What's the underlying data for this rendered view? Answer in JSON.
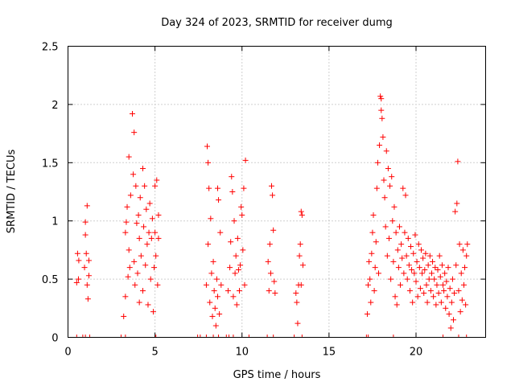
{
  "chart_data": {
    "type": "scatter",
    "title": "Day 324 of 2023, SRMTID for receiver dumg",
    "xlabel": "GPS time / hours",
    "ylabel": "SRMTID / TECUs",
    "xlim": [
      0,
      24
    ],
    "ylim": [
      0,
      2.5
    ],
    "xticks": [
      0,
      5,
      10,
      15,
      20
    ],
    "xtick_labels": [
      "0",
      "5",
      "10",
      "15",
      "20"
    ],
    "yticks": [
      0,
      0.5,
      1,
      1.5,
      2,
      2.5
    ],
    "ytick_labels": [
      "0",
      "0.5",
      "1",
      "1.5",
      "2",
      "2.5"
    ],
    "grid": true,
    "marker": "+",
    "color": "#ff0000",
    "series": [
      {
        "name": "SRMTID",
        "points": [
          [
            0.5,
            0.47
          ],
          [
            0.55,
            0.72
          ],
          [
            0.6,
            0.5
          ],
          [
            0.62,
            0.66
          ],
          [
            0.95,
            0.6
          ],
          [
            1.0,
            0.88
          ],
          [
            1.0,
            0.99
          ],
          [
            1.05,
            0.72
          ],
          [
            1.1,
            1.13
          ],
          [
            1.1,
            0.45
          ],
          [
            1.15,
            0.33
          ],
          [
            1.2,
            0.53
          ],
          [
            1.2,
            0.66
          ],
          [
            3.2,
            0.18
          ],
          [
            3.3,
            0.35
          ],
          [
            3.3,
            0.9
          ],
          [
            3.35,
            0.99
          ],
          [
            3.4,
            1.12
          ],
          [
            3.45,
            0.52
          ],
          [
            3.5,
            1.55
          ],
          [
            3.5,
            0.75
          ],
          [
            3.55,
            0.6
          ],
          [
            3.6,
            1.22
          ],
          [
            3.7,
            1.92
          ],
          [
            3.75,
            1.4
          ],
          [
            3.8,
            1.76
          ],
          [
            3.8,
            0.65
          ],
          [
            3.85,
            0.45
          ],
          [
            3.9,
            1.3
          ],
          [
            3.95,
            0.98
          ],
          [
            4.0,
            0.55
          ],
          [
            4.05,
            1.05
          ],
          [
            4.1,
            0.3
          ],
          [
            4.1,
            0.85
          ],
          [
            4.15,
            1.2
          ],
          [
            4.2,
            0.7
          ],
          [
            4.3,
            1.45
          ],
          [
            4.3,
            0.4
          ],
          [
            4.35,
            0.95
          ],
          [
            4.4,
            1.3
          ],
          [
            4.45,
            0.62
          ],
          [
            4.5,
            1.1
          ],
          [
            4.55,
            0.8
          ],
          [
            4.6,
            0.28
          ],
          [
            4.65,
            0.9
          ],
          [
            4.7,
            1.15
          ],
          [
            4.75,
            0.5
          ],
          [
            4.8,
            0.85
          ],
          [
            4.85,
            1.02
          ],
          [
            4.9,
            0.22
          ],
          [
            4.95,
            0.6
          ],
          [
            5.0,
            1.3
          ],
          [
            5.0,
            0.9
          ],
          [
            5.05,
            0.7
          ],
          [
            5.1,
            1.35
          ],
          [
            5.15,
            0.45
          ],
          [
            5.2,
            0.85
          ],
          [
            5.2,
            1.05
          ],
          [
            7.95,
            0.45
          ],
          [
            8.0,
            1.64
          ],
          [
            8.05,
            0.8
          ],
          [
            8.05,
            1.5
          ],
          [
            8.1,
            1.28
          ],
          [
            8.15,
            0.3
          ],
          [
            8.2,
            1.02
          ],
          [
            8.25,
            0.55
          ],
          [
            8.3,
            0.18
          ],
          [
            8.35,
            0.65
          ],
          [
            8.4,
            0.4
          ],
          [
            8.45,
            0.25
          ],
          [
            8.5,
            0.1
          ],
          [
            8.55,
            0.5
          ],
          [
            8.6,
            1.28
          ],
          [
            8.6,
            0.35
          ],
          [
            8.65,
            1.18
          ],
          [
            8.7,
            0.2
          ],
          [
            8.75,
            0.9
          ],
          [
            8.8,
            0.45
          ],
          [
            9.2,
            0.4
          ],
          [
            9.3,
            0.6
          ],
          [
            9.35,
            0.82
          ],
          [
            9.4,
            1.38
          ],
          [
            9.45,
            1.25
          ],
          [
            9.5,
            0.35
          ],
          [
            9.55,
            1.0
          ],
          [
            9.6,
            0.55
          ],
          [
            9.65,
            0.7
          ],
          [
            9.7,
            0.28
          ],
          [
            9.75,
            0.85
          ],
          [
            9.8,
            0.58
          ],
          [
            9.85,
            0.4
          ],
          [
            9.9,
            0.62
          ],
          [
            9.95,
            1.12
          ],
          [
            10.0,
            1.05
          ],
          [
            10.05,
            0.75
          ],
          [
            10.1,
            1.28
          ],
          [
            10.15,
            0.45
          ],
          [
            10.2,
            1.52
          ],
          [
            11.5,
            0.65
          ],
          [
            11.55,
            0.4
          ],
          [
            11.6,
            0.8
          ],
          [
            11.65,
            0.55
          ],
          [
            11.7,
            1.3
          ],
          [
            11.75,
            1.22
          ],
          [
            11.8,
            0.92
          ],
          [
            11.85,
            0.48
          ],
          [
            11.9,
            0.38
          ],
          [
            13.1,
            0.38
          ],
          [
            13.15,
            0.3
          ],
          [
            13.2,
            0.12
          ],
          [
            13.25,
            0.45
          ],
          [
            13.3,
            0.7
          ],
          [
            13.35,
            0.8
          ],
          [
            13.4,
            1.08
          ],
          [
            13.45,
            1.05
          ],
          [
            13.5,
            0.62
          ],
          [
            13.4,
            0.45
          ],
          [
            17.2,
            0.2
          ],
          [
            17.25,
            0.45
          ],
          [
            17.3,
            0.65
          ],
          [
            17.35,
            0.5
          ],
          [
            17.4,
            0.3
          ],
          [
            17.45,
            0.72
          ],
          [
            17.5,
            0.9
          ],
          [
            17.55,
            1.05
          ],
          [
            17.6,
            0.4
          ],
          [
            17.65,
            0.6
          ],
          [
            17.7,
            0.82
          ],
          [
            17.75,
            1.28
          ],
          [
            17.8,
            1.5
          ],
          [
            17.85,
            0.55
          ],
          [
            17.9,
            1.65
          ],
          [
            17.95,
            2.07
          ],
          [
            18.0,
            2.05
          ],
          [
            18.0,
            1.95
          ],
          [
            18.05,
            1.88
          ],
          [
            18.1,
            1.72
          ],
          [
            18.15,
            1.35
          ],
          [
            18.2,
            1.2
          ],
          [
            18.25,
            0.95
          ],
          [
            18.3,
            1.6
          ],
          [
            18.35,
            0.7
          ],
          [
            18.4,
            1.45
          ],
          [
            18.45,
            0.85
          ],
          [
            18.5,
            1.3
          ],
          [
            18.55,
            0.5
          ],
          [
            18.6,
            1.38
          ],
          [
            18.65,
            1.0
          ],
          [
            18.7,
            0.65
          ],
          [
            18.75,
            1.12
          ],
          [
            18.8,
            0.35
          ],
          [
            18.85,
            0.9
          ],
          [
            18.9,
            0.28
          ],
          [
            18.95,
            0.75
          ],
          [
            19.0,
            0.6
          ],
          [
            19.05,
            0.95
          ],
          [
            19.1,
            0.45
          ],
          [
            19.15,
            0.8
          ],
          [
            19.2,
            0.68
          ],
          [
            19.25,
            1.28
          ],
          [
            19.3,
            0.55
          ],
          [
            19.35,
            0.9
          ],
          [
            19.4,
            1.22
          ],
          [
            19.45,
            0.7
          ],
          [
            19.5,
            0.5
          ],
          [
            19.55,
            0.85
          ],
          [
            19.6,
            0.62
          ],
          [
            19.65,
            0.4
          ],
          [
            19.7,
            0.78
          ],
          [
            19.75,
            0.58
          ],
          [
            19.8,
            0.3
          ],
          [
            19.85,
            0.72
          ],
          [
            19.9,
            0.55
          ],
          [
            19.95,
            0.88
          ],
          [
            20.0,
            0.48
          ],
          [
            20.05,
            0.65
          ],
          [
            20.1,
            0.35
          ],
          [
            20.15,
            0.8
          ],
          [
            20.2,
            0.6
          ],
          [
            20.25,
            0.42
          ],
          [
            20.3,
            0.75
          ],
          [
            20.35,
            0.55
          ],
          [
            20.4,
            0.68
          ],
          [
            20.45,
            0.38
          ],
          [
            20.5,
            0.58
          ],
          [
            20.55,
            0.72
          ],
          [
            20.6,
            0.45
          ],
          [
            20.65,
            0.3
          ],
          [
            20.7,
            0.62
          ],
          [
            20.75,
            0.5
          ],
          [
            20.8,
            0.7
          ],
          [
            20.85,
            0.4
          ],
          [
            20.9,
            0.55
          ],
          [
            20.95,
            0.65
          ],
          [
            21.0,
            0.35
          ],
          [
            21.05,
            0.5
          ],
          [
            21.1,
            0.6
          ],
          [
            21.15,
            0.28
          ],
          [
            21.2,
            0.45
          ],
          [
            21.25,
            0.58
          ],
          [
            21.3,
            0.38
          ],
          [
            21.35,
            0.7
          ],
          [
            21.4,
            0.52
          ],
          [
            21.45,
            0.3
          ],
          [
            21.5,
            0.62
          ],
          [
            21.55,
            0.45
          ],
          [
            21.6,
            0.4
          ],
          [
            21.65,
            0.55
          ],
          [
            21.7,
            0.25
          ],
          [
            21.75,
            0.48
          ],
          [
            21.8,
            0.35
          ],
          [
            21.85,
            0.6
          ],
          [
            21.9,
            0.2
          ],
          [
            21.95,
            0.42
          ],
          [
            22.0,
            0.08
          ],
          [
            22.05,
            0.3
          ],
          [
            22.1,
            0.5
          ],
          [
            22.15,
            0.15
          ],
          [
            22.2,
            0.38
          ],
          [
            22.25,
            1.08
          ],
          [
            22.3,
            0.62
          ],
          [
            22.35,
            1.15
          ],
          [
            22.4,
            1.51
          ],
          [
            22.45,
            0.4
          ],
          [
            22.5,
            0.8
          ],
          [
            22.55,
            0.22
          ],
          [
            22.6,
            0.55
          ],
          [
            22.65,
            0.32
          ],
          [
            22.7,
            0.75
          ],
          [
            22.75,
            0.45
          ],
          [
            22.8,
            0.6
          ],
          [
            22.85,
            0.28
          ],
          [
            22.9,
            0.7
          ],
          [
            22.95,
            0.8
          ]
        ]
      }
    ],
    "zero_points_x": [
      0.5,
      0.85,
      1.0,
      1.25,
      3.05,
      3.3,
      5.05,
      7.45,
      7.6,
      7.95,
      8.35,
      8.65,
      9.1,
      9.25,
      9.5,
      10.4,
      11.45,
      11.8,
      13.0,
      13.45,
      17.15,
      17.25,
      18.7,
      21.55,
      22.45,
      22.9
    ]
  }
}
